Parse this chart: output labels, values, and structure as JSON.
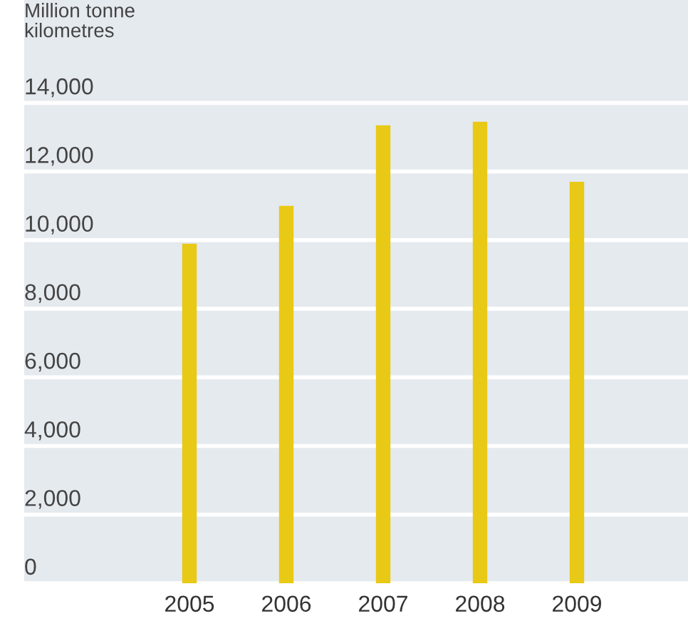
{
  "chart_data": {
    "type": "bar",
    "ylabel": "Million tonne\nkilometres",
    "categories": [
      "2005",
      "2006",
      "2007",
      "2008",
      "2009"
    ],
    "values": [
      9900,
      11000,
      13350,
      13450,
      11700
    ],
    "color": "#e8c916",
    "ylim": [
      0,
      17000
    ],
    "yticks": [
      {
        "value": 0,
        "label": "0"
      },
      {
        "value": 2000,
        "label": "2,000"
      },
      {
        "value": 4000,
        "label": "4,000"
      },
      {
        "value": 6000,
        "label": "6,000"
      },
      {
        "value": 8000,
        "label": "8,000"
      },
      {
        "value": 10000,
        "label": "10,000"
      },
      {
        "value": 12000,
        "label": "12,000"
      },
      {
        "value": 14000,
        "label": "14,000"
      }
    ],
    "grid": "y"
  }
}
